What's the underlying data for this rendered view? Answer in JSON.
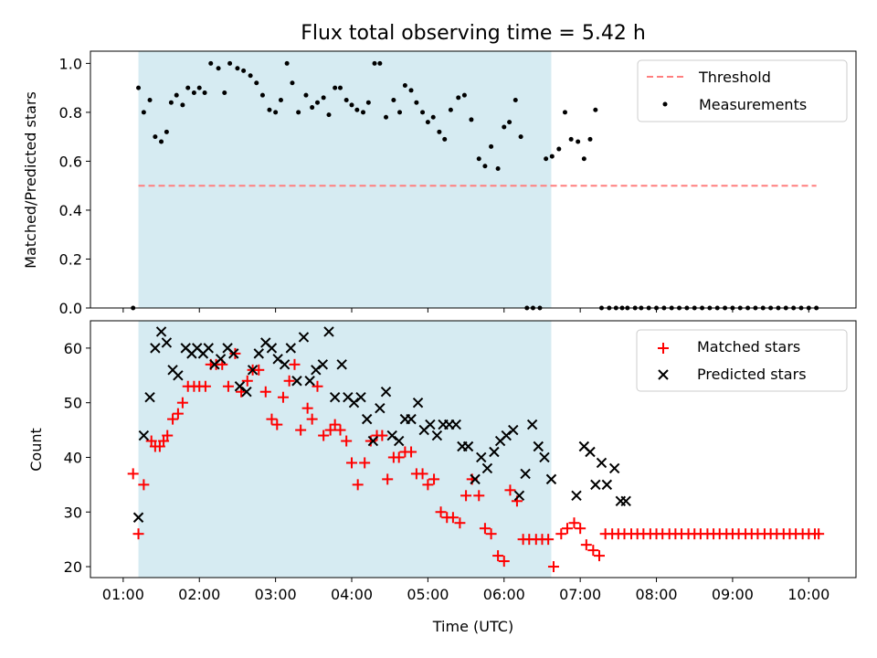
{
  "chart_data": {
    "title": "Flux total observing time = 5.42 h",
    "xlabel": "Time (UTC)",
    "x_unit": "hours UTC",
    "x_ticks": [
      {
        "value": 1,
        "label": "01:00"
      },
      {
        "value": 2,
        "label": "02:00"
      },
      {
        "value": 3,
        "label": "03:00"
      },
      {
        "value": 4,
        "label": "04:00"
      },
      {
        "value": 5,
        "label": "05:00"
      },
      {
        "value": 6,
        "label": "06:00"
      },
      {
        "value": 7,
        "label": "07:00"
      },
      {
        "value": 8,
        "label": "08:00"
      },
      {
        "value": 9,
        "label": "09:00"
      },
      {
        "value": 10,
        "label": "10:00"
      }
    ],
    "xlim": [
      0.57,
      10.62
    ],
    "shaded_span": {
      "x_start": 1.2,
      "x_end": 6.62,
      "color": "#add8e6"
    },
    "panels": [
      {
        "type": "scatter",
        "ylabel": "Matched/Predicted stars",
        "ylim": [
          0.0,
          1.05
        ],
        "y_ticks": [
          "0.0",
          "0.2",
          "0.4",
          "0.6",
          "0.8",
          "1.0"
        ],
        "legend_position": "top-right",
        "threshold": {
          "name": "Threshold",
          "value": 0.5,
          "x_range": [
            1.2,
            10.1
          ],
          "color": "#ff7f7f",
          "style": "dashed"
        },
        "series": [
          {
            "name": "Measurements",
            "marker": "dot",
            "color": "#000000",
            "x": [
              1.13,
              1.2,
              1.27,
              1.35,
              1.42,
              1.5,
              1.57,
              1.63,
              1.7,
              1.78,
              1.85,
              1.93,
              2.0,
              2.07,
              2.15,
              2.25,
              2.33,
              2.4,
              2.5,
              2.58,
              2.67,
              2.75,
              2.83,
              2.92,
              3.0,
              3.07,
              3.15,
              3.22,
              3.3,
              3.4,
              3.48,
              3.55,
              3.63,
              3.7,
              3.78,
              3.85,
              3.93,
              4.0,
              4.07,
              4.15,
              4.22,
              4.3,
              4.37,
              4.45,
              4.55,
              4.63,
              4.7,
              4.78,
              4.85,
              4.93,
              5.0,
              5.07,
              5.15,
              5.22,
              5.3,
              5.4,
              5.48,
              5.57,
              5.67,
              5.75,
              5.83,
              5.92,
              6.0,
              6.07,
              6.15,
              6.22,
              6.3,
              6.38,
              6.47,
              6.55,
              6.63,
              6.72,
              6.8,
              6.88,
              6.97,
              7.05,
              7.13,
              7.2,
              7.28,
              7.38,
              7.47,
              7.55,
              7.62,
              7.72,
              7.8,
              7.9,
              8.0,
              8.1,
              8.2,
              8.3,
              8.4,
              8.5,
              8.6,
              8.7,
              8.8,
              8.9,
              9.0,
              9.1,
              9.2,
              9.3,
              9.4,
              9.5,
              9.6,
              9.7,
              9.8,
              9.9,
              10.0,
              10.1
            ],
            "y": [
              0.0,
              0.9,
              0.8,
              0.85,
              0.7,
              0.68,
              0.72,
              0.84,
              0.87,
              0.83,
              0.9,
              0.88,
              0.9,
              0.88,
              1.0,
              0.98,
              0.88,
              1.0,
              0.98,
              0.97,
              0.95,
              0.92,
              0.87,
              0.81,
              0.8,
              0.85,
              1.0,
              0.92,
              0.8,
              0.87,
              0.82,
              0.84,
              0.86,
              0.79,
              0.9,
              0.9,
              0.85,
              0.83,
              0.81,
              0.8,
              0.84,
              1.0,
              1.0,
              0.78,
              0.85,
              0.8,
              0.91,
              0.89,
              0.84,
              0.8,
              0.76,
              0.78,
              0.72,
              0.69,
              0.81,
              0.86,
              0.87,
              0.77,
              0.61,
              0.58,
              0.66,
              0.57,
              0.74,
              0.76,
              0.85,
              0.7,
              0.0,
              0.0,
              0.0,
              0.61,
              0.62,
              0.65,
              0.8,
              0.69,
              0.68,
              0.61,
              0.69,
              0.81,
              0.0,
              0.0,
              0.0,
              0.0,
              0.0,
              0.0,
              0.0,
              0.0,
              0.0,
              0.0,
              0.0,
              0.0,
              0.0,
              0.0,
              0.0,
              0.0,
              0.0,
              0.0,
              0.0,
              0.0,
              0.0,
              0.0,
              0.0,
              0.0,
              0.0,
              0.0,
              0.0,
              0.0,
              0.0,
              0.0
            ]
          }
        ]
      },
      {
        "type": "scatter",
        "ylabel": "Count",
        "ylim": [
          18,
          65
        ],
        "y_ticks": [
          "20",
          "30",
          "40",
          "50",
          "60"
        ],
        "legend_position": "top-right",
        "series": [
          {
            "name": "Matched stars",
            "marker": "plus",
            "color": "#ff0000",
            "x": [
              1.13,
              1.2,
              1.27,
              1.37,
              1.42,
              1.48,
              1.53,
              1.58,
              1.65,
              1.72,
              1.78,
              1.85,
              1.93,
              2.0,
              2.08,
              2.15,
              2.22,
              2.3,
              2.38,
              2.47,
              2.55,
              2.63,
              2.7,
              2.78,
              2.87,
              2.95,
              3.02,
              3.1,
              3.18,
              3.25,
              3.33,
              3.42,
              3.48,
              3.55,
              3.63,
              3.72,
              3.78,
              3.85,
              3.93,
              4.0,
              4.08,
              4.17,
              4.25,
              4.33,
              4.4,
              4.47,
              4.55,
              4.62,
              4.7,
              4.78,
              4.85,
              4.93,
              5.0,
              5.08,
              5.17,
              5.25,
              5.33,
              5.42,
              5.5,
              5.58,
              5.67,
              5.75,
              5.83,
              5.92,
              6.0,
              6.08,
              6.17,
              6.25,
              6.33,
              6.42,
              6.5,
              6.58,
              6.65,
              6.75,
              6.83,
              6.92,
              7.0,
              7.08,
              7.17,
              7.25,
              7.33,
              7.42,
              7.5,
              7.58,
              7.67,
              7.75,
              7.83,
              7.92,
              8.0,
              8.08,
              8.17,
              8.25,
              8.33,
              8.42,
              8.5,
              8.58,
              8.67,
              8.75,
              8.83,
              8.92,
              9.0,
              9.08,
              9.17,
              9.25,
              9.33,
              9.42,
              9.5,
              9.58,
              9.67,
              9.75,
              9.83,
              9.92,
              10.0,
              10.08,
              10.13
            ],
            "y": [
              37,
              26,
              35,
              43,
              42,
              42,
              43,
              44,
              47,
              48,
              50,
              53,
              53,
              53,
              53,
              57,
              57,
              57,
              53,
              59,
              52,
              54,
              56,
              56,
              52,
              47,
              46,
              51,
              54,
              57,
              45,
              49,
              47,
              53,
              44,
              45,
              46,
              45,
              43,
              39,
              35,
              39,
              43,
              44,
              44,
              36,
              40,
              40,
              41,
              41,
              37,
              37,
              35,
              36,
              30,
              29,
              29,
              28,
              33,
              36,
              33,
              27,
              26,
              22,
              21,
              34,
              32,
              25,
              25,
              25,
              25,
              25,
              20,
              26,
              27,
              28,
              27,
              24,
              23,
              22,
              26,
              26,
              26,
              26,
              26,
              26,
              26,
              26,
              26,
              26,
              26,
              26,
              26,
              26,
              26,
              26,
              26,
              26,
              26,
              26,
              26,
              26,
              26,
              26,
              26,
              26,
              26,
              26,
              26,
              26,
              26,
              26,
              26,
              26,
              26
            ]
          },
          {
            "name": "Predicted stars",
            "marker": "x",
            "color": "#000000",
            "x": [
              1.2,
              1.27,
              1.35,
              1.42,
              1.5,
              1.57,
              1.65,
              1.72,
              1.82,
              1.9,
              1.97,
              2.05,
              2.12,
              2.2,
              2.28,
              2.37,
              2.45,
              2.53,
              2.62,
              2.7,
              2.78,
              2.87,
              2.95,
              3.03,
              3.12,
              3.2,
              3.28,
              3.37,
              3.45,
              3.53,
              3.62,
              3.7,
              3.78,
              3.87,
              3.95,
              4.03,
              4.12,
              4.2,
              4.28,
              4.37,
              4.45,
              4.53,
              4.62,
              4.7,
              4.78,
              4.87,
              4.95,
              5.03,
              5.12,
              5.2,
              5.28,
              5.37,
              5.45,
              5.53,
              5.62,
              5.7,
              5.78,
              5.87,
              5.95,
              6.03,
              6.12,
              6.2,
              6.28,
              6.37,
              6.45,
              6.53,
              6.62,
              6.95,
              7.05,
              7.13,
              7.2,
              7.28,
              7.35,
              7.45,
              7.53,
              7.6
            ],
            "y": [
              29,
              44,
              51,
              60,
              63,
              61,
              56,
              55,
              60,
              59,
              60,
              59,
              60,
              57,
              58,
              60,
              59,
              53,
              52,
              56,
              59,
              61,
              60,
              58,
              57,
              60,
              54,
              62,
              54,
              56,
              57,
              63,
              51,
              57,
              51,
              50,
              51,
              47,
              43,
              49,
              52,
              44,
              43,
              47,
              47,
              50,
              45,
              46,
              44,
              46,
              46,
              46,
              42,
              42,
              36,
              40,
              38,
              41,
              43,
              44,
              45,
              33,
              37,
              46,
              42,
              40,
              36,
              33,
              42,
              41,
              35,
              39,
              35,
              38,
              32,
              32
            ]
          }
        ]
      }
    ]
  }
}
